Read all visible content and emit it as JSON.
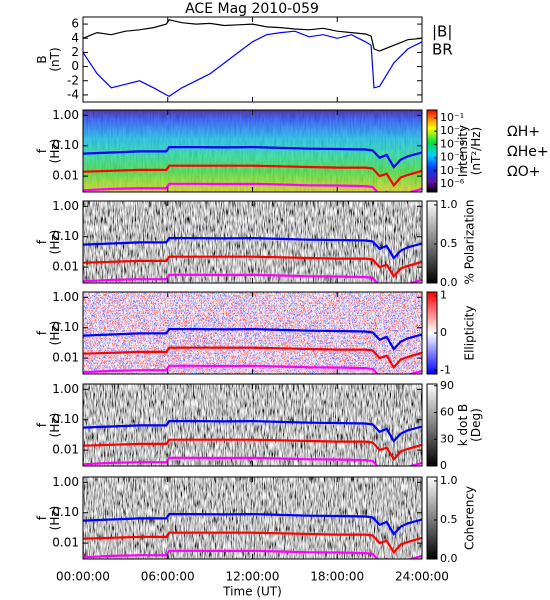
{
  "chart_data": [
    {
      "type": "line",
      "title": "ACE Mag 2010-059",
      "ylabel": [
        "B",
        "(nT)"
      ],
      "x": [
        0,
        1,
        2,
        3,
        4,
        5,
        5.9,
        6.1,
        7,
        8,
        9,
        10,
        11,
        12,
        13,
        14,
        15,
        16,
        17,
        18,
        19,
        20,
        20.4,
        20.6,
        21,
        22,
        23,
        24
      ],
      "ylim": [
        -5,
        7
      ],
      "yticks": [
        -4,
        -2,
        0,
        2,
        4,
        6
      ],
      "series": [
        {
          "name": "|B|",
          "color": "#000000",
          "values": [
            4.0,
            4.8,
            4.5,
            5.0,
            5.2,
            5.5,
            6.0,
            6.6,
            6.2,
            6.0,
            6.1,
            5.8,
            5.9,
            6.0,
            5.6,
            5.5,
            5.3,
            5.2,
            5.4,
            5.0,
            4.8,
            4.6,
            4.3,
            2.5,
            2.2,
            3.0,
            3.8,
            4.0
          ]
        },
        {
          "name": "BR",
          "color": "#0000ff",
          "values": [
            2.0,
            -1.0,
            -3.0,
            -2.5,
            -2.0,
            -3.0,
            -4.0,
            -4.2,
            -3.0,
            -2.0,
            -1.0,
            0.5,
            2.0,
            3.5,
            4.5,
            4.8,
            5.0,
            4.2,
            4.5,
            4.0,
            4.5,
            3.5,
            3.0,
            -3.0,
            -2.8,
            0.5,
            2.5,
            3.5
          ]
        }
      ]
    },
    {
      "type": "spectrogram",
      "ylabel": [
        "f",
        "(Hz)"
      ],
      "ylog": true,
      "ylim": [
        0.003,
        1.5
      ],
      "yticks": [
        0.01,
        {
          "value": 0.1,
          "label": "0.10"
        },
        {
          "value": 1,
          "label": "1.00"
        }
      ],
      "colormap": "rainbow",
      "clabel": [
        "Intensity",
        "(nT²/Hz)"
      ],
      "clog": true,
      "clim": [
        2.5e-07,
        0.4
      ],
      "cticks": [
        {
          "value": 0.1,
          "label": "10⁻¹"
        },
        {
          "value": 0.01,
          "label": "10⁻²"
        },
        {
          "value": 0.001,
          "label": "10⁻³"
        },
        {
          "value": 0.0001,
          "label": "10⁻⁴"
        },
        {
          "value": 1e-05,
          "label": "10⁻⁵"
        },
        {
          "value": 1e-06,
          "label": "10⁻⁶"
        }
      ],
      "x": [
        0,
        2,
        4,
        5.9,
        6.1,
        8,
        10,
        12,
        14,
        16,
        18,
        20,
        20.5,
        21,
        21.5,
        22,
        22.5,
        23,
        24
      ],
      "series": [
        {
          "name": "ΩH+",
          "color": "#0000ff",
          "values": [
            0.055,
            0.06,
            0.065,
            0.065,
            0.09,
            0.09,
            0.088,
            0.09,
            0.085,
            0.08,
            0.078,
            0.075,
            0.07,
            0.04,
            0.05,
            0.02,
            0.035,
            0.045,
            0.06
          ]
        },
        {
          "name": "ΩHe+",
          "color": "#ff0000",
          "values": [
            0.014,
            0.015,
            0.016,
            0.016,
            0.022,
            0.022,
            0.022,
            0.022,
            0.021,
            0.02,
            0.019,
            0.019,
            0.018,
            0.01,
            0.012,
            0.005,
            0.009,
            0.011,
            0.015
          ]
        },
        {
          "name": "ΩO+",
          "color": "#ff00ff",
          "values": [
            0.0034,
            0.0038,
            0.004,
            0.004,
            0.0056,
            0.0056,
            0.0055,
            0.0056,
            0.0053,
            0.005,
            0.0049,
            0.0047,
            0.0044,
            0.0025,
            0.003,
            0.0013,
            0.0022,
            0.0028,
            0.0038
          ]
        }
      ]
    },
    {
      "type": "spectrogram",
      "ylabel": [
        "f",
        "(Hz)"
      ],
      "ylog": true,
      "ylim": [
        0.003,
        1.5
      ],
      "yticks": [
        0.01,
        {
          "value": 0.1,
          "label": "0.10"
        },
        {
          "value": 1,
          "label": "1.00"
        }
      ],
      "colormap": "gray",
      "clabel": [
        "% Polarization"
      ],
      "clim": [
        0,
        1.05
      ],
      "cticks": [
        {
          "value": 0,
          "label": "0.0"
        },
        {
          "value": 0.5,
          "label": "0.5"
        },
        {
          "value": 1,
          "label": "1.0"
        }
      ]
    },
    {
      "type": "spectrogram",
      "ylabel": [
        "f",
        "(Hz)"
      ],
      "ylog": true,
      "ylim": [
        0.003,
        1.5
      ],
      "yticks": [
        0.01,
        {
          "value": 0.1,
          "label": "0.10"
        },
        {
          "value": 1,
          "label": "1.00"
        }
      ],
      "colormap": "bwr",
      "clabel": [
        "Ellipticity"
      ],
      "clim": [
        -1.1,
        1.1
      ],
      "cticks": [
        -1,
        0,
        1
      ]
    },
    {
      "type": "spectrogram",
      "ylabel": [
        "f",
        "(Hz)"
      ],
      "ylog": true,
      "ylim": [
        0.003,
        1.5
      ],
      "yticks": [
        0.01,
        {
          "value": 0.1,
          "label": "0.10"
        },
        {
          "value": 1,
          "label": "1.00"
        }
      ],
      "colormap": "gray",
      "clabel": [
        "k dot B",
        "(Deg)"
      ],
      "clim": [
        0,
        92
      ],
      "cticks": [
        0,
        30,
        60,
        90
      ]
    },
    {
      "type": "spectrogram",
      "ylabel": [
        "f",
        "(Hz)"
      ],
      "ylog": true,
      "ylim": [
        0.003,
        1.5
      ],
      "yticks": [
        0.01,
        {
          "value": 0.1,
          "label": "0.10"
        },
        {
          "value": 1,
          "label": "1.00"
        }
      ],
      "colormap": "gray",
      "clabel": [
        "Coherency"
      ],
      "clim": [
        0,
        1.05
      ],
      "cticks": [
        {
          "value": 0,
          "label": "0.0"
        },
        {
          "value": 0.5,
          "label": "0.5"
        },
        {
          "value": 1,
          "label": "1.0"
        }
      ],
      "xlabel": "Time (UT)",
      "xlim": [
        0,
        24
      ],
      "xticks": [
        {
          "value": 0,
          "label": "00:00:00"
        },
        {
          "value": 6,
          "label": "06:00:00"
        },
        {
          "value": 12,
          "label": "12:00:00"
        },
        {
          "value": 18,
          "label": "18:00:00"
        },
        {
          "value": 24,
          "label": "24:00:00"
        }
      ]
    }
  ]
}
